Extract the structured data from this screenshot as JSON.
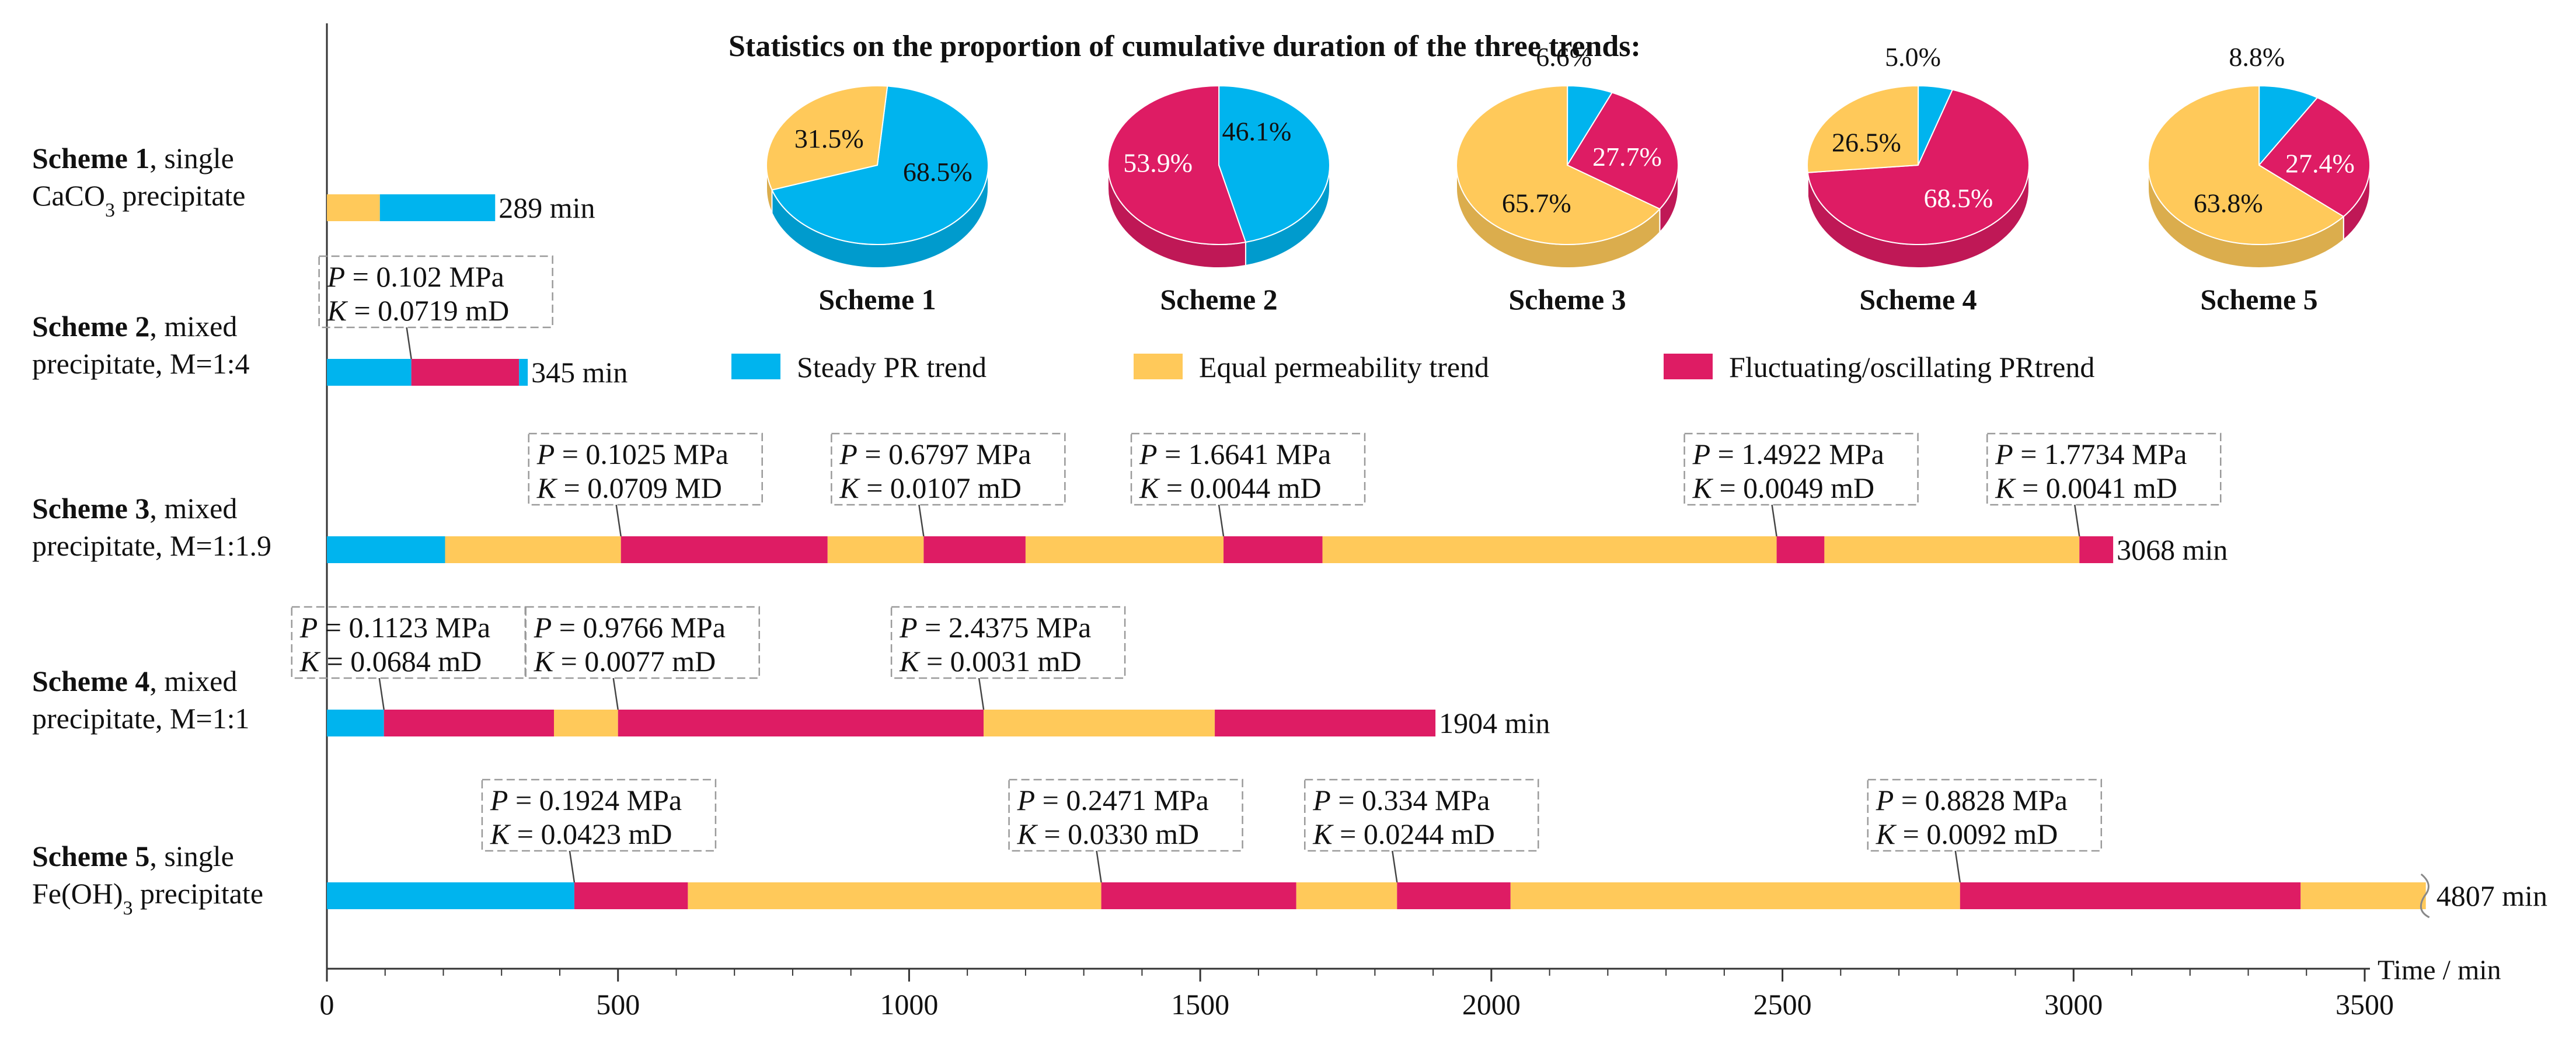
{
  "chart_data": {
    "type": "bar",
    "subtype": "horizontal timeline (stacked segments) with pie insets",
    "title": "Statistics on the proportion of cumulative duration of the three trends:",
    "xlabel": "Time / min",
    "xlim": [
      0,
      3500
    ],
    "xticks": [
      0,
      500,
      1000,
      1500,
      2000,
      2500,
      3000,
      3500
    ],
    "grid": false,
    "colors": {
      "steady": "#00B4EE",
      "equal": "#FFC95A",
      "fluct": "#DE1C64",
      "axis": "#333333",
      "callout_border": "#9a9a9a"
    },
    "legend": [
      {
        "key": "steady",
        "label": "Steady PR trend"
      },
      {
        "key": "equal",
        "label": "Equal permeability trend"
      },
      {
        "key": "fluct",
        "label": "Fluctuating/oscillating PRtrend"
      }
    ],
    "schemes": [
      {
        "name_bold": "Scheme 1",
        "name_rest": ", single",
        "line2": "CaCO",
        "line2_sub": "3",
        "line2_tail": " precipitate",
        "end_label": "289 min",
        "segments": [
          {
            "start": 0,
            "end": 91,
            "trend": "equal"
          },
          {
            "start": 91,
            "end": 289,
            "trend": "steady"
          }
        ],
        "annotations": []
      },
      {
        "name_bold": "Scheme 2",
        "name_rest": ", mixed",
        "line2": "precipitate, M=1:4",
        "line2_sub": "",
        "line2_tail": "",
        "end_label": "345 min",
        "segments": [
          {
            "start": 0,
            "end": 145,
            "trend": "steady"
          },
          {
            "start": 145,
            "end": 330,
            "trend": "fluct"
          },
          {
            "start": 330,
            "end": 345,
            "trend": "steady"
          }
        ],
        "annotations": [
          {
            "at": 145,
            "P": "0.102 MPa",
            "K": "0.0719 mD"
          }
        ]
      },
      {
        "name_bold": "Scheme 3",
        "name_rest": ", mixed",
        "line2": "precipitate, M=1:1.9",
        "line2_sub": "",
        "line2_tail": "",
        "end_label": "3068 min",
        "segments": [
          {
            "start": 0,
            "end": 203,
            "trend": "steady"
          },
          {
            "start": 203,
            "end": 505,
            "trend": "equal"
          },
          {
            "start": 505,
            "end": 860,
            "trend": "fluct"
          },
          {
            "start": 860,
            "end": 1025,
            "trend": "equal"
          },
          {
            "start": 1025,
            "end": 1200,
            "trend": "fluct"
          },
          {
            "start": 1200,
            "end": 1540,
            "trend": "equal"
          },
          {
            "start": 1540,
            "end": 1710,
            "trend": "fluct"
          },
          {
            "start": 1710,
            "end": 2490,
            "trend": "equal"
          },
          {
            "start": 2490,
            "end": 2572,
            "trend": "fluct"
          },
          {
            "start": 2572,
            "end": 3010,
            "trend": "equal"
          },
          {
            "start": 3010,
            "end": 3068,
            "trend": "fluct"
          }
        ],
        "annotations": [
          {
            "at": 505,
            "P": "0.1025 MPa",
            "K": "0.0709 MD"
          },
          {
            "at": 1025,
            "P": "0.6797 MPa",
            "K": "0.0107 mD"
          },
          {
            "at": 1540,
            "P": "1.6641 MPa",
            "K": "0.0044 mD"
          },
          {
            "at": 2490,
            "P": "1.4922 MPa",
            "K": "0.0049 mD"
          },
          {
            "at": 3010,
            "P": "1.7734 MPa",
            "K": "0.0041 mD"
          }
        ]
      },
      {
        "name_bold": "Scheme 4",
        "name_rest": ", mixed",
        "line2": "precipitate, M=1:1",
        "line2_sub": "",
        "line2_tail": "",
        "end_label": "1904 min",
        "segments": [
          {
            "start": 0,
            "end": 98,
            "trend": "steady"
          },
          {
            "start": 98,
            "end": 390,
            "trend": "fluct"
          },
          {
            "start": 390,
            "end": 500,
            "trend": "equal"
          },
          {
            "start": 500,
            "end": 1128,
            "trend": "fluct"
          },
          {
            "start": 1128,
            "end": 1525,
            "trend": "equal"
          },
          {
            "start": 1525,
            "end": 1904,
            "trend": "fluct"
          }
        ],
        "annotations": [
          {
            "at": 98,
            "P": "0.1123 MPa",
            "K": "0.0684 mD"
          },
          {
            "at": 500,
            "P": "0.9766 MPa",
            "K": "0.0077 mD"
          },
          {
            "at": 1128,
            "P": "2.4375 MPa",
            "K": "0.0031 mD"
          }
        ]
      },
      {
        "name_bold": "Scheme 5",
        "name_rest": ", single",
        "line2": "Fe(OH)",
        "line2_sub": "3",
        "line2_tail": " precipitate",
        "end_label": "4807 min",
        "segments": [
          {
            "start": 0,
            "end": 425,
            "trend": "steady"
          },
          {
            "start": 425,
            "end": 620,
            "trend": "fluct"
          },
          {
            "start": 620,
            "end": 1330,
            "trend": "equal"
          },
          {
            "start": 1330,
            "end": 1665,
            "trend": "fluct"
          },
          {
            "start": 1665,
            "end": 1838,
            "trend": "equal"
          },
          {
            "start": 1838,
            "end": 2033,
            "trend": "fluct"
          },
          {
            "start": 2033,
            "end": 2805,
            "trend": "equal"
          },
          {
            "start": 2805,
            "end": 3390,
            "trend": "fluct"
          },
          {
            "start": 3390,
            "end": 3605,
            "trend": "equal"
          }
        ],
        "axis_break": true,
        "annotations": [
          {
            "at": 425,
            "P": "0.1924 MPa",
            "K": "0.0423 mD"
          },
          {
            "at": 1330,
            "P": "0.2471 MPa",
            "K": "0.0330 mD"
          },
          {
            "at": 1838,
            "P": "0.334 MPa",
            "K": "0.0244 mD"
          },
          {
            "at": 2805,
            "P": "0.8828 MPa",
            "K": "0.0092 mD"
          }
        ]
      }
    ],
    "pies": [
      {
        "label": "Scheme 1",
        "slices": [
          {
            "trend": "steady",
            "value": 68.5,
            "label": "68.5%"
          },
          {
            "trend": "equal",
            "value": 31.5,
            "label": "31.5%"
          }
        ]
      },
      {
        "label": "Scheme 2",
        "slices": [
          {
            "trend": "steady",
            "value": 46.1,
            "label": "46.1%"
          },
          {
            "trend": "fluct",
            "value": 53.9,
            "label": "53.9%"
          }
        ]
      },
      {
        "label": "Scheme 3",
        "slices": [
          {
            "trend": "steady",
            "value": 6.6,
            "label": "6.6%"
          },
          {
            "trend": "fluct",
            "value": 27.7,
            "label": "27.7%"
          },
          {
            "trend": "equal",
            "value": 65.7,
            "label": "65.7%"
          }
        ]
      },
      {
        "label": "Scheme 4",
        "slices": [
          {
            "trend": "steady",
            "value": 5.0,
            "label": "5.0%"
          },
          {
            "trend": "fluct",
            "value": 68.5,
            "label": "68.5%"
          },
          {
            "trend": "equal",
            "value": 26.5,
            "label": "26.5%"
          }
        ]
      },
      {
        "label": "Scheme 5",
        "slices": [
          {
            "trend": "steady",
            "value": 8.8,
            "label": "8.8%"
          },
          {
            "trend": "fluct",
            "value": 27.4,
            "label": "27.4%"
          },
          {
            "trend": "equal",
            "value": 63.8,
            "label": "63.8%"
          }
        ]
      }
    ]
  }
}
